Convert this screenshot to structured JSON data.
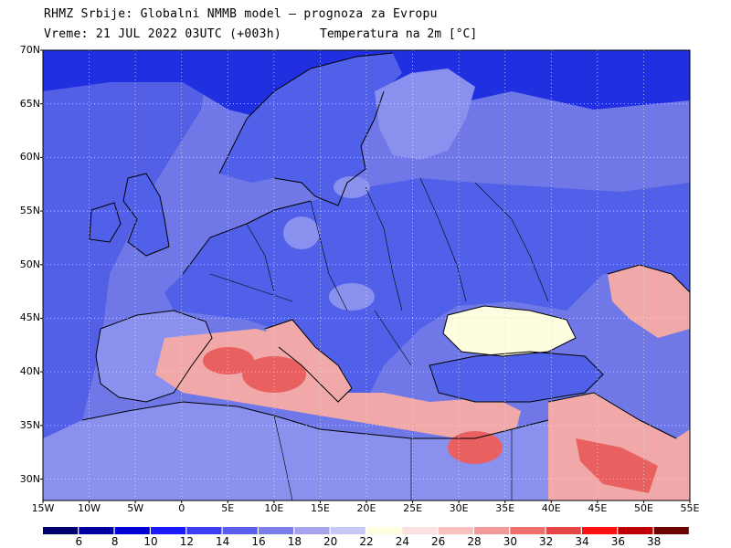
{
  "header": {
    "line1": "RHMZ Srbije: Globalni NMMB model — prognoza za Evropu",
    "line2": "Vreme: 21 JUL 2022 03UTC (+003h)",
    "variable": "Temperatura na 2m [°C]"
  },
  "axes": {
    "lat_labels": [
      "70N",
      "65N",
      "60N",
      "55N",
      "50N",
      "45N",
      "40N",
      "35N",
      "30N"
    ],
    "lon_labels": [
      "15W",
      "10W",
      "5W",
      "0",
      "5E",
      "10E",
      "15E",
      "20E",
      "25E",
      "30E",
      "35E",
      "40E",
      "45E",
      "50E",
      "55E"
    ],
    "lat_range": [
      28,
      70
    ],
    "lon_range": [
      -15,
      55
    ],
    "grid": "dotted"
  },
  "colorbar": {
    "labels": [
      "6",
      "8",
      "10",
      "12",
      "14",
      "16",
      "18",
      "20",
      "22",
      "24",
      "26",
      "28",
      "30",
      "32",
      "34",
      "36",
      "38"
    ],
    "colors": [
      "#00006a",
      "#00009e",
      "#0000d2",
      "#1a1aff",
      "#3d3df5",
      "#5c5cee",
      "#7d7de8",
      "#a3a3ee",
      "#c8c8f6",
      "#fefede",
      "#fde0e0",
      "#fac0c0",
      "#f59a9a",
      "#ee6e6e",
      "#e64545",
      "#ff1010",
      "#c00000",
      "#6a0000"
    ]
  },
  "colors": {
    "sea_base": "#6f78e6",
    "land_cool": "#5060e8",
    "land_mild": "#8a90ee",
    "north_cold": "#2030e0",
    "warm_south": "#f0a8a8",
    "hot": "#e86060",
    "pale_yellow": "#fdfde0",
    "coast_line": "#000000"
  }
}
